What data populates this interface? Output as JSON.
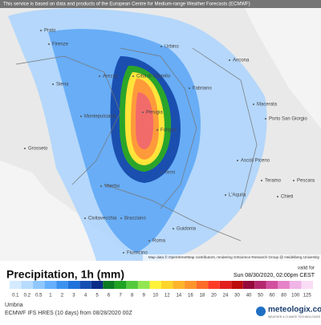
{
  "banner": "This service is based on data and products of the European Centre for Medium-range Weather Forecasts (ECMWF)",
  "cities": [
    "Prato",
    "Firenze",
    "Siena",
    "Arezzo",
    "Urbino",
    "Città di Castello",
    "Ancona",
    "Fabriano",
    "Montepulciano",
    "Perugia",
    "Foligno",
    "Macerata",
    "Porto San Giorgio",
    "Grosseto",
    "Ascoli Piceno",
    "Terni",
    "Teramo",
    "Viterbo",
    "L'Aquila",
    "Pescara",
    "Chieti",
    "Civitavecchia",
    "Bracciano",
    "Guidonia",
    "Roma",
    "Fiumicino"
  ],
  "attribution": "Map data © OpenStreetMap contributors, rendering GIScience Research Group @ Heidelberg University",
  "legend": {
    "title": "Precipitation, 1h (mm)",
    "valid_label": "valid for",
    "valid_time": "Sun 08/30/2020, 02:00pm CEST",
    "labels": [
      "0.1",
      "0.2",
      "0.5",
      "1",
      "2",
      "3",
      "4",
      "5",
      "6",
      "7",
      "8",
      "9",
      "10",
      "12",
      "14",
      "16",
      "18",
      "20",
      "24",
      "30",
      "40",
      "50",
      "60",
      "80",
      "100",
      "125"
    ],
    "colors": [
      "#d4ebff",
      "#b6dcff",
      "#8fc7ff",
      "#66b0ff",
      "#3d92f0",
      "#1f72dc",
      "#1450b4",
      "#0a2a88",
      "#0b7a22",
      "#1fa323",
      "#55c93d",
      "#93e652",
      "#fff23a",
      "#ffd42a",
      "#ffb42a",
      "#ff952a",
      "#ff6c28",
      "#ff3c28",
      "#e41e1e",
      "#bd0c0c",
      "#960a3c",
      "#b4286e",
      "#d250a0",
      "#e682c8",
      "#f0b4e6",
      "#fadcf5"
    ]
  },
  "footer": {
    "region": "Umbria",
    "model": "ECMWF IFS HRES (10 days) from 08/28/2020 00Z",
    "brand": "meteologix.com",
    "tagline": "WEATHER & CLIMATE TECHNOLOGIES"
  }
}
